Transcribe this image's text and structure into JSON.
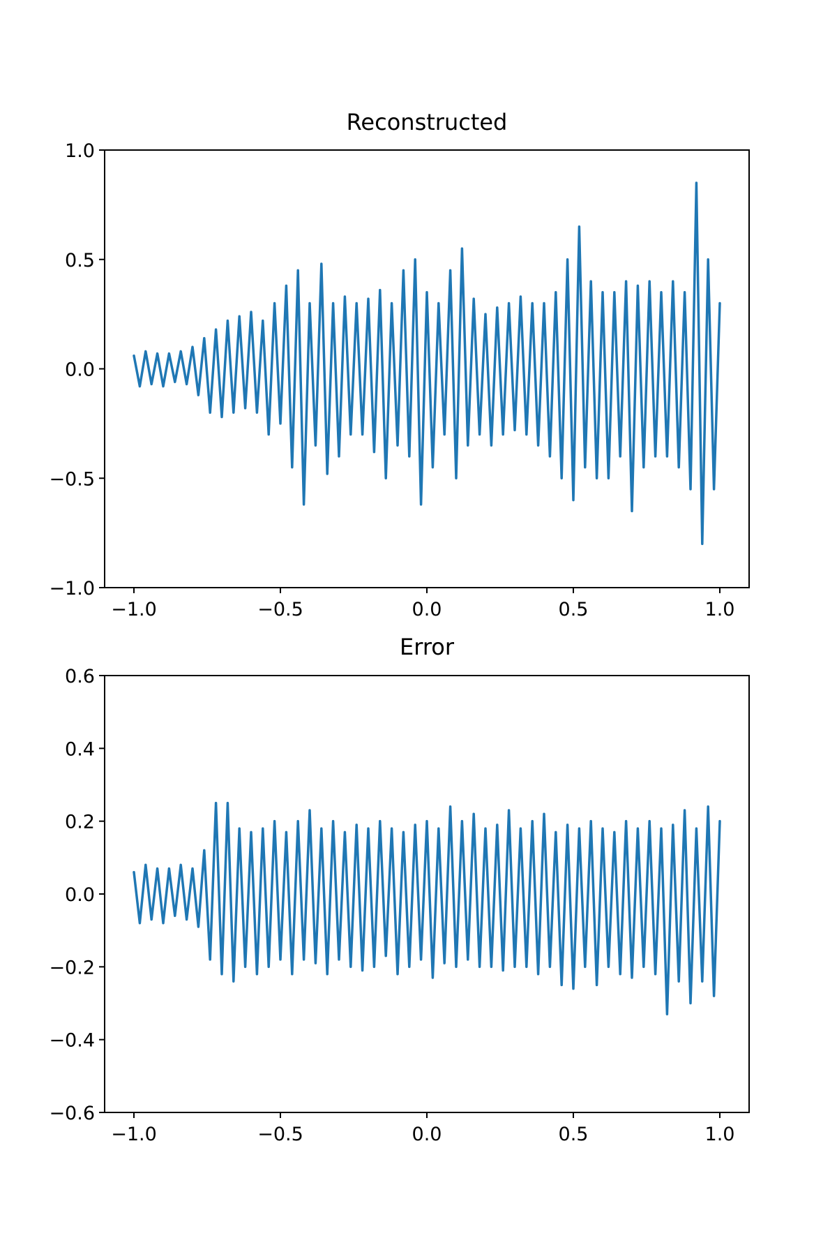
{
  "chart_data": [
    {
      "type": "line",
      "title": "Reconstructed",
      "color": "#1f77b4",
      "x": [
        -1,
        -0.98,
        -0.96,
        -0.94,
        -0.92,
        -0.9,
        -0.88,
        -0.86,
        -0.84,
        -0.82,
        -0.8,
        -0.78,
        -0.76,
        -0.74,
        -0.72,
        -0.7,
        -0.68,
        -0.66,
        -0.64,
        -0.62,
        -0.6,
        -0.58,
        -0.56,
        -0.54,
        -0.52,
        -0.5,
        -0.48,
        -0.46,
        -0.44,
        -0.42,
        -0.4,
        -0.38,
        -0.36,
        -0.34,
        -0.32,
        -0.3,
        -0.28,
        -0.26,
        -0.24,
        -0.22,
        -0.2,
        -0.18,
        -0.16,
        -0.14,
        -0.12,
        -0.1,
        -0.08,
        -0.06,
        -0.04,
        -0.02,
        0,
        0.02,
        0.04,
        0.06,
        0.08,
        0.1,
        0.12,
        0.14,
        0.16,
        0.18,
        0.2,
        0.22,
        0.24,
        0.26,
        0.28,
        0.3,
        0.32,
        0.34,
        0.36,
        0.38,
        0.4,
        0.42,
        0.44,
        0.46,
        0.48,
        0.5,
        0.52,
        0.54,
        0.56,
        0.58,
        0.6,
        0.62,
        0.64,
        0.66,
        0.68,
        0.7,
        0.72,
        0.74,
        0.76,
        0.78,
        0.8,
        0.82,
        0.84,
        0.86,
        0.88,
        0.9,
        0.92,
        0.94,
        0.96,
        0.98,
        1
      ],
      "values": [
        0.06,
        -0.08,
        0.08,
        -0.07,
        0.07,
        -0.08,
        0.07,
        -0.06,
        0.08,
        -0.07,
        0.1,
        -0.12,
        0.14,
        -0.2,
        0.18,
        -0.22,
        0.22,
        -0.2,
        0.24,
        -0.18,
        0.26,
        -0.2,
        0.22,
        -0.3,
        0.3,
        -0.25,
        0.38,
        -0.45,
        0.45,
        -0.62,
        0.3,
        -0.35,
        0.48,
        -0.48,
        0.3,
        -0.4,
        0.33,
        -0.3,
        0.3,
        -0.3,
        0.32,
        -0.38,
        0.36,
        -0.5,
        0.3,
        -0.35,
        0.45,
        -0.4,
        0.5,
        -0.62,
        0.35,
        -0.45,
        0.3,
        -0.3,
        0.45,
        -0.5,
        0.55,
        -0.35,
        0.32,
        -0.3,
        0.25,
        -0.35,
        0.28,
        -0.3,
        0.3,
        -0.28,
        0.33,
        -0.3,
        0.3,
        -0.35,
        0.3,
        -0.4,
        0.35,
        -0.5,
        0.5,
        -0.6,
        0.65,
        -0.45,
        0.4,
        -0.5,
        0.35,
        -0.5,
        0.35,
        -0.4,
        0.4,
        -0.65,
        0.38,
        -0.45,
        0.4,
        -0.4,
        0.35,
        -0.4,
        0.4,
        -0.45,
        0.35,
        -0.55,
        0.85,
        -0.8,
        0.5,
        -0.55,
        0.3
      ],
      "xlim": [
        -1.1,
        1.1
      ],
      "ylim": [
        -1,
        1
      ],
      "xticks": [
        {
          "value": -1,
          "label": "−1.0"
        },
        {
          "value": -0.5,
          "label": "−0.5"
        },
        {
          "value": 0,
          "label": "0.0"
        },
        {
          "value": 0.5,
          "label": "0.5"
        },
        {
          "value": 1,
          "label": "1.0"
        }
      ],
      "yticks": [
        {
          "value": -1,
          "label": "−1.0"
        },
        {
          "value": -0.5,
          "label": "−0.5"
        },
        {
          "value": 0,
          "label": "0.0"
        },
        {
          "value": 0.5,
          "label": "0.5"
        },
        {
          "value": 1,
          "label": "1.0"
        }
      ]
    },
    {
      "type": "line",
      "title": "Error",
      "color": "#1f77b4",
      "x": [
        -1,
        -0.98,
        -0.96,
        -0.94,
        -0.92,
        -0.9,
        -0.88,
        -0.86,
        -0.84,
        -0.82,
        -0.8,
        -0.78,
        -0.76,
        -0.74,
        -0.72,
        -0.7,
        -0.68,
        -0.66,
        -0.64,
        -0.62,
        -0.6,
        -0.58,
        -0.56,
        -0.54,
        -0.52,
        -0.5,
        -0.48,
        -0.46,
        -0.44,
        -0.42,
        -0.4,
        -0.38,
        -0.36,
        -0.34,
        -0.32,
        -0.3,
        -0.28,
        -0.26,
        -0.24,
        -0.22,
        -0.2,
        -0.18,
        -0.16,
        -0.14,
        -0.12,
        -0.1,
        -0.08,
        -0.06,
        -0.04,
        -0.02,
        0,
        0.02,
        0.04,
        0.06,
        0.08,
        0.1,
        0.12,
        0.14,
        0.16,
        0.18,
        0.2,
        0.22,
        0.24,
        0.26,
        0.28,
        0.3,
        0.32,
        0.34,
        0.36,
        0.38,
        0.4,
        0.42,
        0.44,
        0.46,
        0.48,
        0.5,
        0.52,
        0.54,
        0.56,
        0.58,
        0.6,
        0.62,
        0.64,
        0.66,
        0.68,
        0.7,
        0.72,
        0.74,
        0.76,
        0.78,
        0.8,
        0.82,
        0.84,
        0.86,
        0.88,
        0.9,
        0.92,
        0.94,
        0.96,
        0.98,
        1
      ],
      "values": [
        0.06,
        -0.08,
        0.08,
        -0.07,
        0.07,
        -0.08,
        0.07,
        -0.06,
        0.08,
        -0.07,
        0.07,
        -0.09,
        0.12,
        -0.18,
        0.25,
        -0.22,
        0.25,
        -0.24,
        0.18,
        -0.2,
        0.17,
        -0.22,
        0.18,
        -0.2,
        0.2,
        -0.18,
        0.17,
        -0.22,
        0.2,
        -0.18,
        0.23,
        -0.19,
        0.18,
        -0.22,
        0.2,
        -0.18,
        0.17,
        -0.2,
        0.19,
        -0.21,
        0.18,
        -0.2,
        0.2,
        -0.17,
        0.18,
        -0.22,
        0.17,
        -0.2,
        0.19,
        -0.18,
        0.2,
        -0.23,
        0.18,
        -0.19,
        0.24,
        -0.2,
        0.2,
        -0.18,
        0.22,
        -0.2,
        0.18,
        -0.2,
        0.19,
        -0.21,
        0.23,
        -0.2,
        0.18,
        -0.2,
        0.2,
        -0.22,
        0.22,
        -0.2,
        0.17,
        -0.25,
        0.19,
        -0.26,
        0.18,
        -0.2,
        0.2,
        -0.25,
        0.18,
        -0.2,
        0.17,
        -0.22,
        0.2,
        -0.23,
        0.18,
        -0.2,
        0.2,
        -0.22,
        0.18,
        -0.33,
        0.19,
        -0.24,
        0.23,
        -0.3,
        0.18,
        -0.24,
        0.24,
        -0.28,
        0.2
      ],
      "xlim": [
        -1.1,
        1.1
      ],
      "ylim": [
        -0.6,
        0.6
      ],
      "xticks": [
        {
          "value": -1,
          "label": "−1.0"
        },
        {
          "value": -0.5,
          "label": "−0.5"
        },
        {
          "value": 0,
          "label": "0.0"
        },
        {
          "value": 0.5,
          "label": "0.5"
        },
        {
          "value": 1,
          "label": "1.0"
        }
      ],
      "yticks": [
        {
          "value": -0.6,
          "label": "−0.6"
        },
        {
          "value": -0.4,
          "label": "−0.4"
        },
        {
          "value": -0.2,
          "label": "−0.2"
        },
        {
          "value": 0,
          "label": "0.0"
        },
        {
          "value": 0.2,
          "label": "0.2"
        },
        {
          "value": 0.4,
          "label": "0.4"
        },
        {
          "value": 0.6,
          "label": "0.6"
        }
      ]
    }
  ]
}
